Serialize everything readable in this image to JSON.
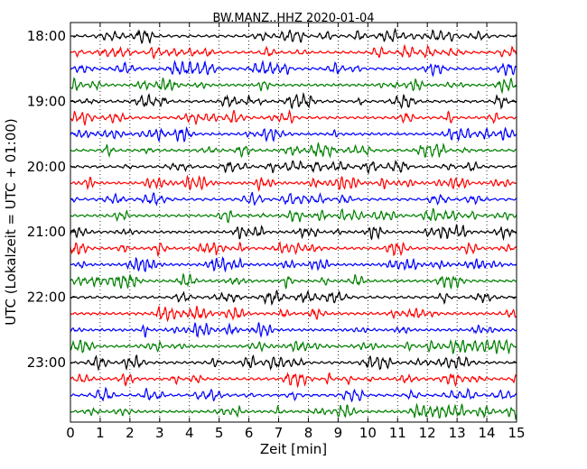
{
  "chart_data": {
    "type": "line",
    "title": "BW.MANZ..HHZ 2020-01-04",
    "xlabel": "Zeit  [min]",
    "ylabel": "UTC (Lokalzeit = UTC + 01:00)",
    "xlim": [
      0,
      15
    ],
    "x_ticks": [
      0,
      1,
      2,
      3,
      4,
      5,
      6,
      7,
      8,
      9,
      10,
      11,
      12,
      13,
      14,
      15
    ],
    "y_ticks": [
      "18:00",
      "19:00",
      "20:00",
      "21:00",
      "22:00",
      "23:00"
    ],
    "trace_start": "18:00",
    "trace_interval_min": 15,
    "trace_count": 24,
    "trace_colors": [
      "#000000",
      "#ff0000",
      "#0000ff",
      "#008000"
    ],
    "vertical_grid": "dotted"
  }
}
